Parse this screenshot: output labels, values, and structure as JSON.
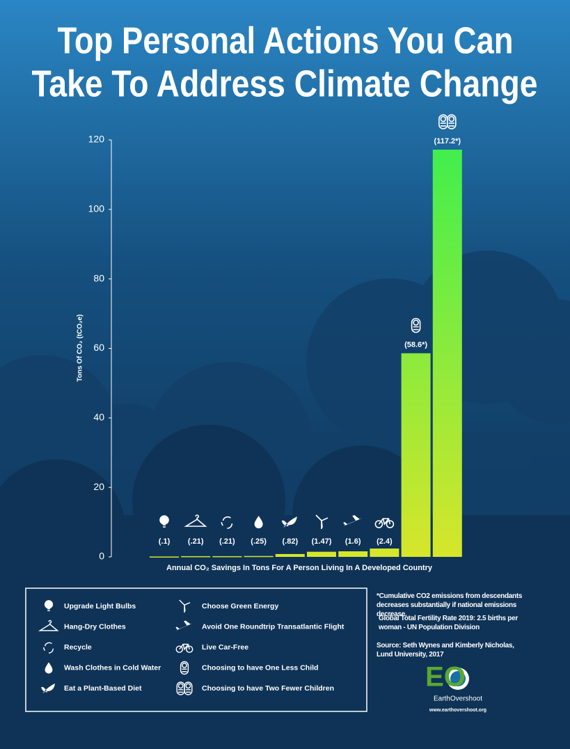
{
  "chart_data": {
    "type": "bar",
    "title": [
      "Top Personal Actions You Can",
      "Take To Address Climate Change"
    ],
    "y_label": "Tons Of CO₂ (tCO₂e)",
    "x_label": "Annual CO₂ Savings In Tons For A Person Living In A Developed Country",
    "categories": [
      "Upgrade Light Bulbs",
      "Hang-Dry Clothes",
      "Recycle",
      "Wash Clothes in Cold Water",
      "Eat a Plant-Based Diet",
      "Choose Green Energy",
      "Avoid One Roundtrip Transatlantic Flight",
      "Live Car-Free",
      "Choosing to have One Less Child",
      "Choosing to have Two Fewer Children"
    ],
    "values": [
      0.1,
      0.21,
      0.21,
      0.25,
      0.82,
      1.47,
      1.6,
      2.4,
      58.6,
      117.2
    ],
    "value_labels": [
      "(.1)",
      "(.21)",
      "(.21)",
      "(.25)",
      "(.82)",
      "(1.47)",
      "(1.6)",
      "(2.4)",
      "(58.6*)",
      "(117.2*)"
    ],
    "gradient": [
      "#d6e62b",
      "#3def4e"
    ],
    "ylim": [
      0,
      120
    ],
    "yticks": [
      0,
      20,
      40,
      60,
      80,
      100,
      120
    ]
  },
  "notes": {
    "footnote": "*Cumulative CO2 emissions from descendants decreases substantially if national emissions decrease.",
    "fertility": "Global Total Fertility Rate  2019: 2.5 births per woman - UN Population Division",
    "source": "Source: Seth Wynes and Kimberly Nicholas, Lund University, 2017"
  },
  "logo": {
    "mark": "EO",
    "name": "EarthOvershoot",
    "url": "www.earthovershoot.org"
  }
}
